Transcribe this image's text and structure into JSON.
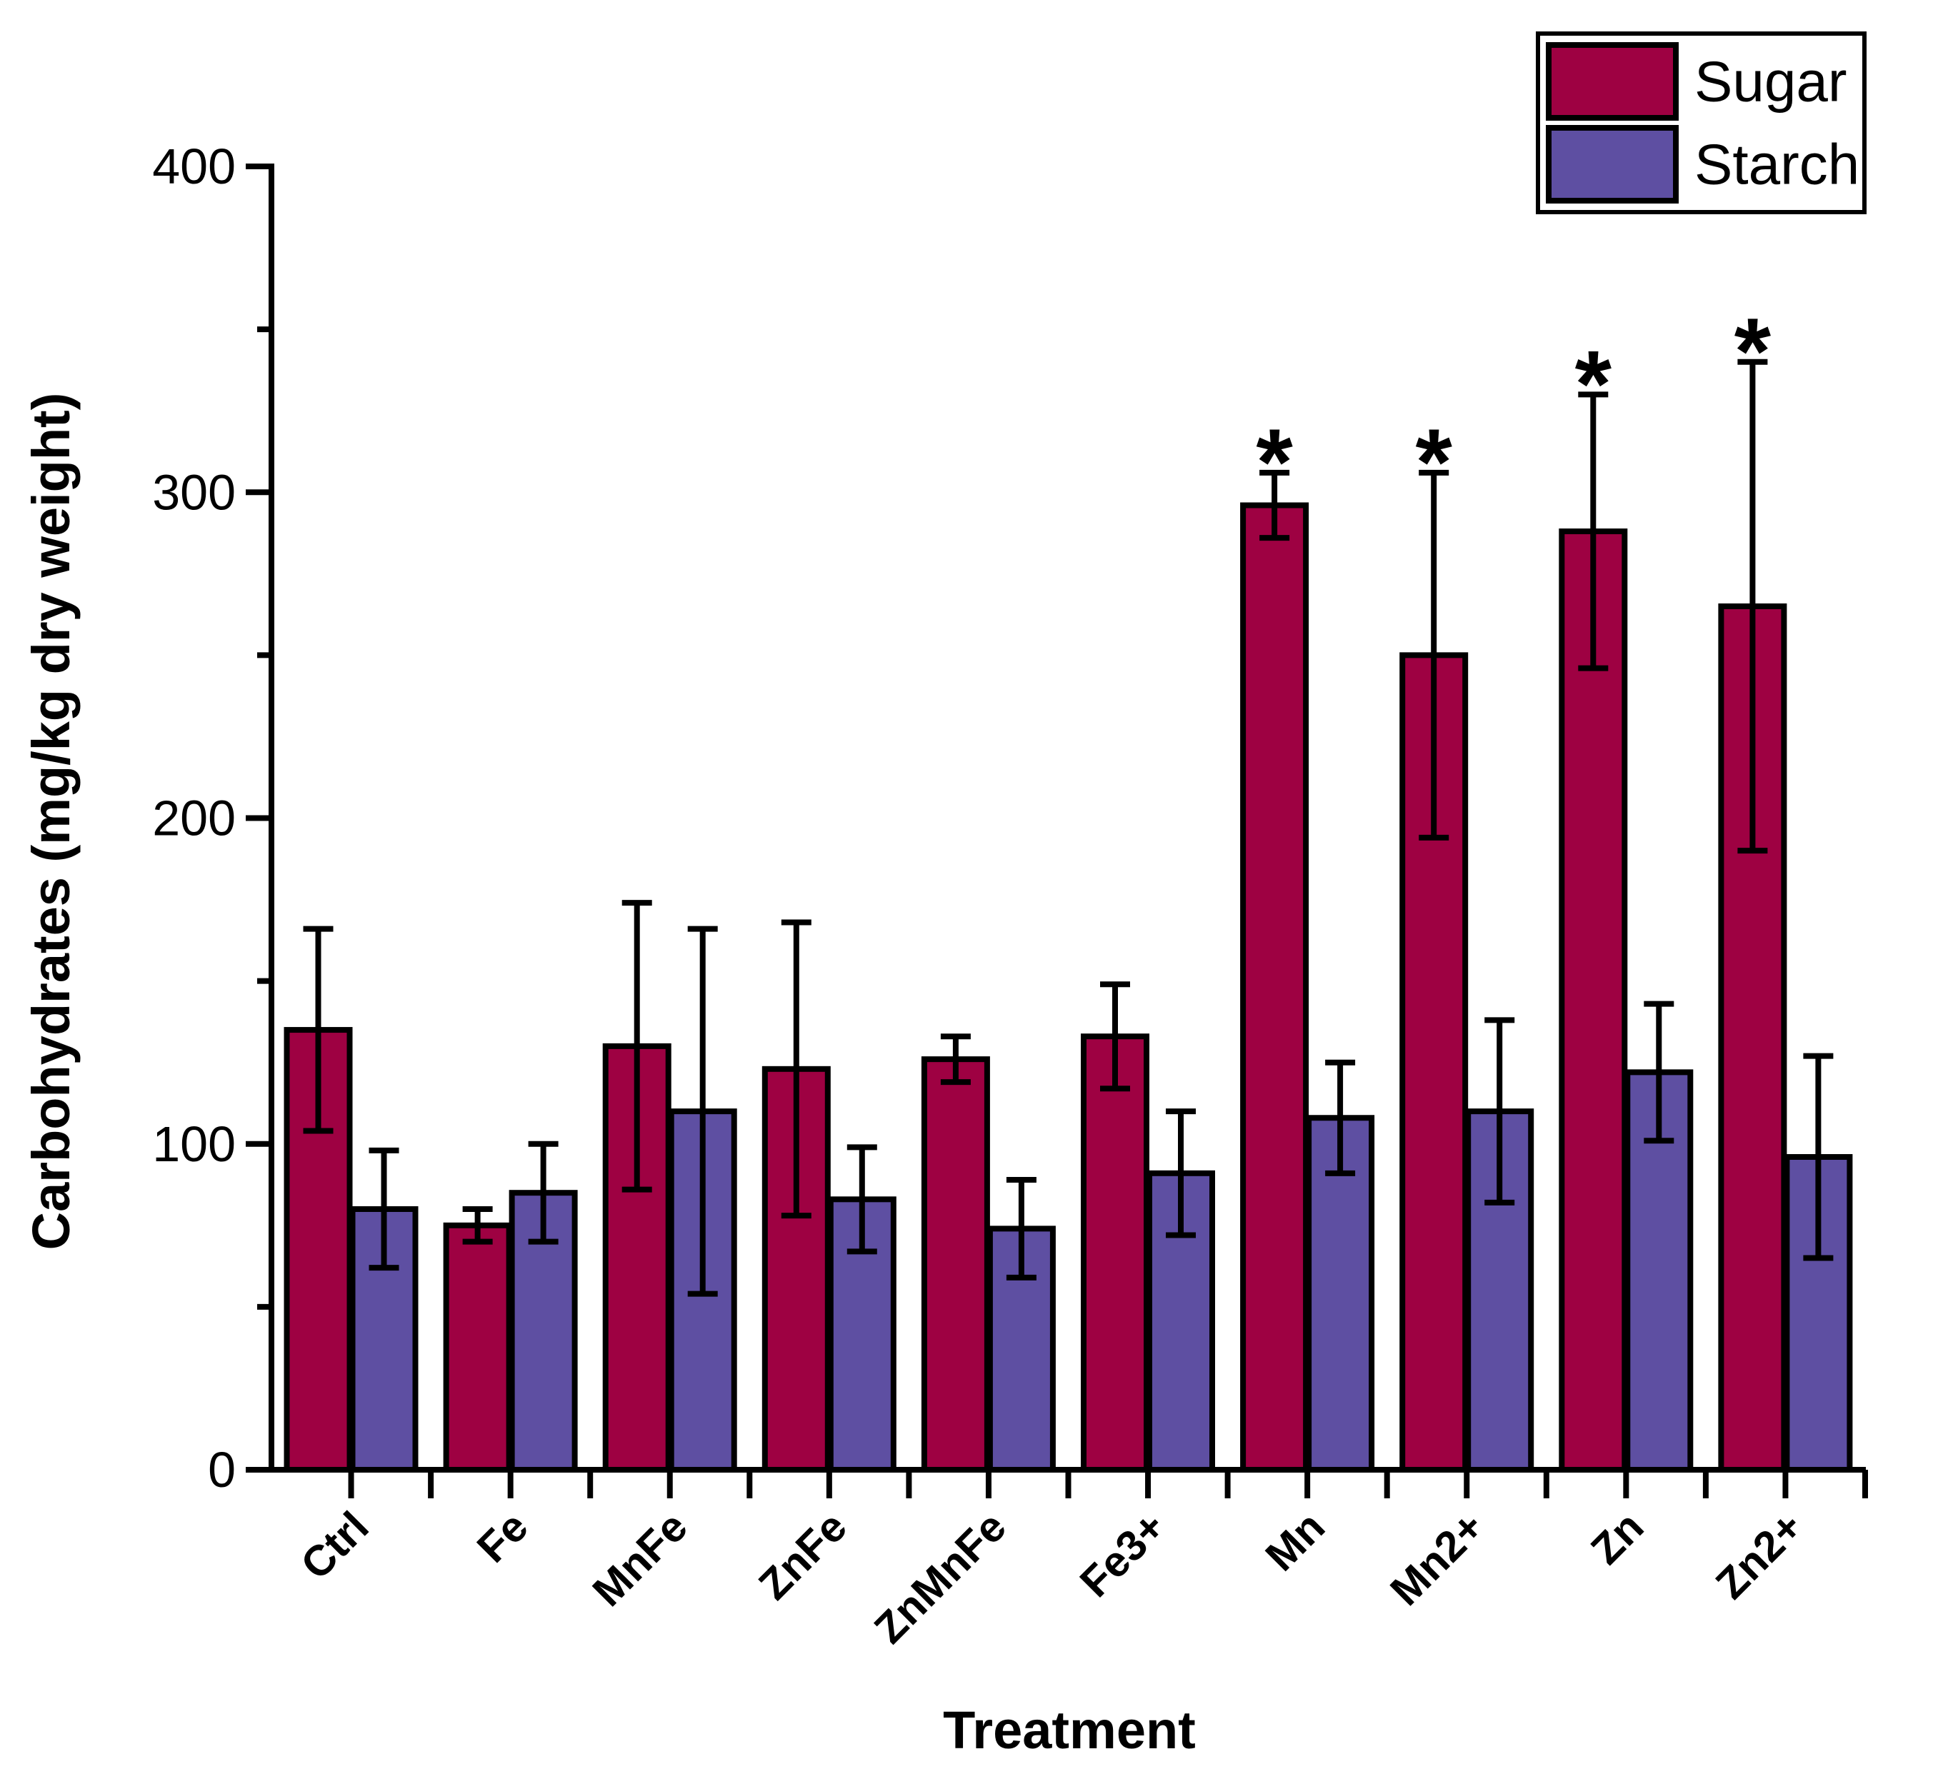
{
  "figure": {
    "background": "#ffffff",
    "axis_color": "#000000"
  },
  "chart_data": {
    "type": "bar",
    "title": "",
    "xlabel": "Treatment",
    "ylabel": "Carbohydrates (mg/kg dry weight)",
    "ylim": [
      0,
      400
    ],
    "y_major_ticks": [
      0,
      100,
      200,
      300,
      400
    ],
    "y_minor_ticks": [
      50,
      150,
      250,
      350
    ],
    "grid": false,
    "legend_position": "top-right",
    "error_bar_style": "caps",
    "significance_marker": "*",
    "categories": [
      "Ctrl",
      "Fe",
      "MnFe",
      "ZnFe",
      "ZnMnFe",
      "Fe3+",
      "Mn",
      "Mn2+",
      "Zn",
      "Zn2+"
    ],
    "series": [
      {
        "name": "Sugar",
        "color": "#9E0142",
        "values": [
          135,
          75,
          130,
          123,
          126,
          133,
          296,
          250,
          288,
          265
        ],
        "errors": [
          31,
          5,
          44,
          45,
          7,
          16,
          10,
          56,
          42,
          75
        ],
        "significant": [
          false,
          false,
          false,
          false,
          false,
          false,
          true,
          true,
          true,
          true
        ]
      },
      {
        "name": "Starch",
        "color": "#5E4FA2",
        "values": [
          80,
          85,
          110,
          83,
          74,
          91,
          108,
          110,
          122,
          96
        ],
        "errors": [
          18,
          15,
          56,
          16,
          15,
          19,
          17,
          28,
          21,
          31
        ],
        "significant": [
          false,
          false,
          false,
          false,
          false,
          false,
          false,
          false,
          false,
          false
        ]
      }
    ]
  }
}
